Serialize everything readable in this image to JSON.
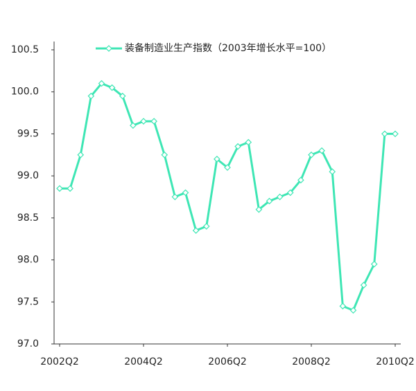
{
  "chart_data": {
    "type": "line",
    "categories": [
      "2002Q2",
      null,
      null,
      null,
      null,
      null,
      null,
      null,
      "2004Q2",
      null,
      null,
      null,
      null,
      null,
      null,
      null,
      "2006Q2",
      null,
      null,
      null,
      null,
      null,
      null,
      null,
      "2008Q2",
      null,
      null,
      null,
      null,
      null,
      null,
      null,
      "2010Q2"
    ],
    "series": [
      {
        "name": "装备制造业生产指数（2003年增长水平=100）",
        "color": "#3ee6b4",
        "values": [
          98.85,
          98.85,
          99.25,
          99.95,
          100.1,
          100.05,
          99.95,
          99.6,
          99.65,
          99.65,
          99.25,
          98.75,
          98.8,
          98.35,
          98.4,
          99.2,
          99.1,
          99.35,
          99.4,
          98.6,
          98.7,
          98.75,
          98.8,
          98.95,
          99.25,
          99.3,
          99.05,
          97.45,
          97.4,
          97.7,
          97.95,
          99.5,
          99.5
        ]
      }
    ],
    "ylim": [
      97,
      100.5
    ],
    "yticks": [
      {
        "value": 97,
        "label": "97.0"
      },
      97.5,
      {
        "value": 98,
        "label": "98.0"
      },
      98.5,
      {
        "value": 99,
        "label": "99.0"
      },
      99.5,
      {
        "value": 100,
        "label": "100.0"
      },
      100.5
    ],
    "grid": false,
    "legend": "top"
  }
}
